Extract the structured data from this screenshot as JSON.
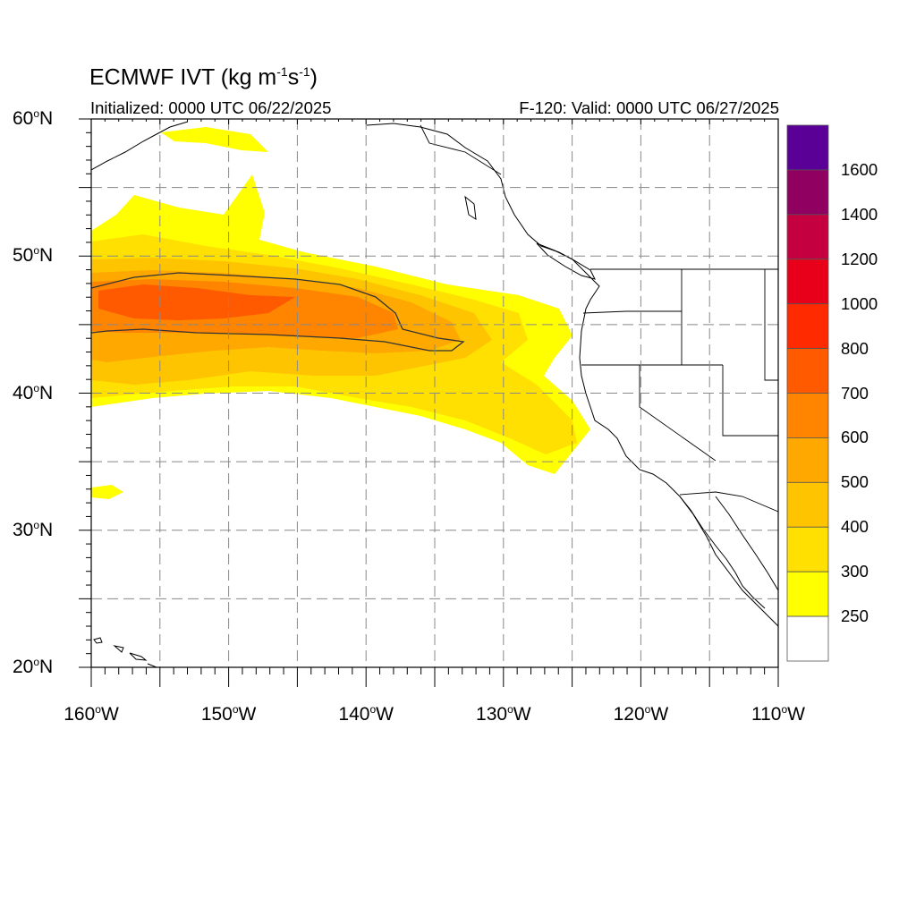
{
  "title": {
    "prefix": "ECMWF IVT (kg m",
    "exp1": "-1",
    "mid": "s",
    "exp2": "-1",
    "suffix": ")"
  },
  "initialized": "Initialized: 0000 UTC 06/22/2025",
  "valid": "F-120: Valid: 0000 UTC 06/27/2025",
  "map": {
    "lon_range": [
      -160,
      -110
    ],
    "lat_range": [
      20,
      60
    ],
    "grid": "dashed",
    "grid_lon_step": 5,
    "grid_lat_step": 5,
    "y_ticks": [
      {
        "lat": 60,
        "label": "60",
        "hemi": "N"
      },
      {
        "lat": 50,
        "label": "50",
        "hemi": "N"
      },
      {
        "lat": 40,
        "label": "40",
        "hemi": "N"
      },
      {
        "lat": 30,
        "label": "30",
        "hemi": "N"
      },
      {
        "lat": 20,
        "label": "20",
        "hemi": "N"
      }
    ],
    "x_ticks": [
      {
        "lon": -160,
        "label": "160",
        "hemi": "W"
      },
      {
        "lon": -150,
        "label": "150",
        "hemi": "W"
      },
      {
        "lon": -140,
        "label": "140",
        "hemi": "W"
      },
      {
        "lon": -130,
        "label": "130",
        "hemi": "W"
      },
      {
        "lon": -120,
        "label": "120",
        "hemi": "W"
      },
      {
        "lon": -110,
        "label": "110",
        "hemi": "W"
      }
    ],
    "contour_level": 750
  },
  "colorbar": {
    "levels": [
      250,
      300,
      400,
      500,
      600,
      700,
      800,
      1000,
      1200,
      1400,
      1600
    ],
    "labels": [
      "250",
      "300",
      "400",
      "500",
      "600",
      "700",
      "800",
      "1000",
      "1200",
      "1400",
      "1600"
    ],
    "colors": [
      "#ffffff",
      "#ffff00",
      "#ffe000",
      "#ffc400",
      "#ffa800",
      "#ff8400",
      "#ff5a00",
      "#ff2a00",
      "#e8001a",
      "#c40040",
      "#900060",
      "#5a0096"
    ]
  }
}
